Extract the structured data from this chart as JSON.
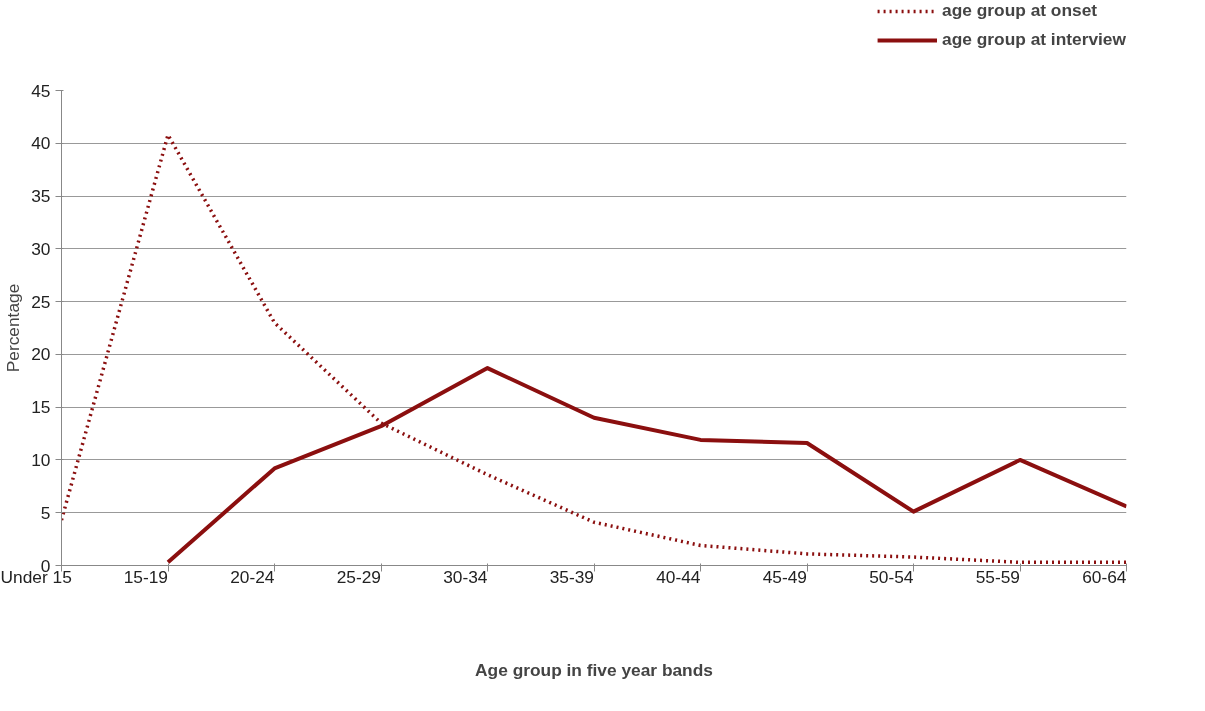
{
  "chart_data": {
    "type": "line",
    "xlabel": "Age group in five year bands",
    "ylabel": "Percentage",
    "categories": [
      "Under 15",
      "15-19",
      "20-24",
      "25-29",
      "30-34",
      "35-39",
      "40-44",
      "45-49",
      "50-54",
      "55-59",
      "60-64"
    ],
    "series": [
      {
        "name": "age group at onset",
        "color": "#8b0f0f",
        "line_style": "dotted",
        "values": [
          4.3,
          40.8,
          23.0,
          13.5,
          8.6,
          4.1,
          1.9,
          1.1,
          0.8,
          0.3,
          0.3
        ]
      },
      {
        "name": "age group at interview",
        "color": "#8b0f0f",
        "line_style": "solid",
        "values": [
          null,
          0.3,
          9.2,
          13.2,
          18.7,
          14.0,
          11.9,
          11.6,
          5.1,
          10.0,
          5.6
        ]
      }
    ],
    "ylim": [
      0,
      45
    ],
    "yticks": [
      0,
      5,
      10,
      15,
      20,
      25,
      30,
      35,
      40,
      45
    ],
    "grid": "y",
    "legend": "top right",
    "marker": "none"
  }
}
